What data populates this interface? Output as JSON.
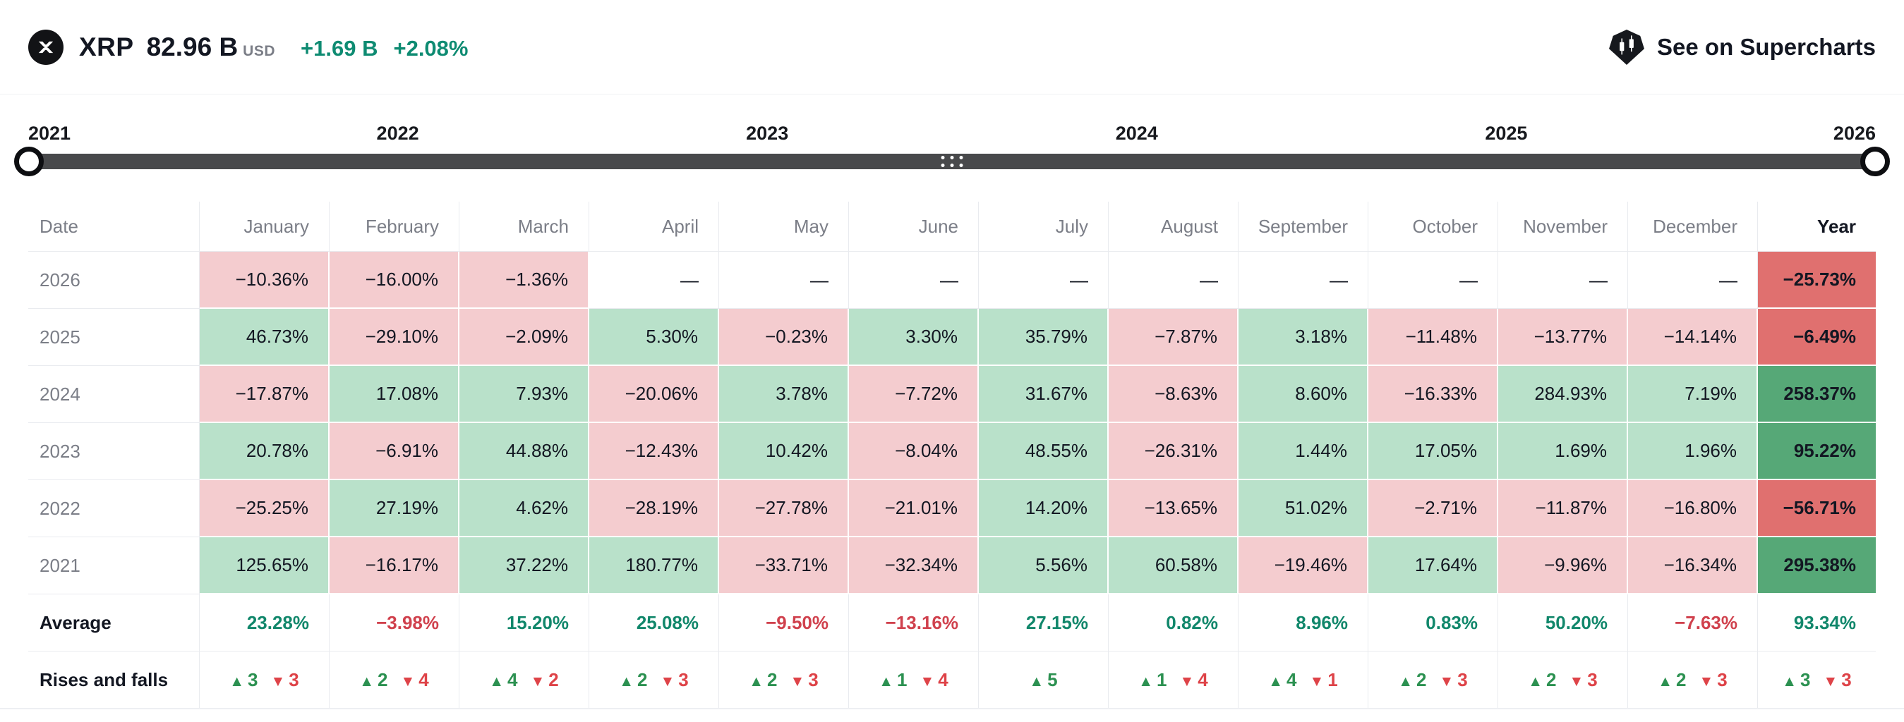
{
  "header": {
    "symbol": "XRP",
    "market_cap": "82.96 B",
    "currency": "USD",
    "change_abs": "+1.69 B",
    "change_pct": "+2.08%",
    "supercharts_label": "See on Supercharts"
  },
  "slider": {
    "years": [
      "2021",
      "2022",
      "2023",
      "2024",
      "2025",
      "2026"
    ]
  },
  "icons": {
    "up_triangle": "▲",
    "down_triangle": "▼"
  },
  "colors": {
    "positive_bg": "#b9e1ca",
    "negative_bg": "#f4cccf",
    "positive_year_bg": "#56a877",
    "negative_year_bg": "#e0706f",
    "green_text": "#11876b",
    "red_text": "#d0414d",
    "accent_green": "#0e8b72"
  },
  "table": {
    "columns": [
      "Date",
      "January",
      "February",
      "March",
      "April",
      "May",
      "June",
      "July",
      "August",
      "September",
      "October",
      "November",
      "December",
      "Year"
    ],
    "rows": [
      {
        "label": "2026",
        "cells": [
          {
            "v": "−10.36%",
            "t": "neg"
          },
          {
            "v": "−16.00%",
            "t": "neg"
          },
          {
            "v": "−1.36%",
            "t": "neg"
          },
          {
            "v": "—",
            "t": "flat"
          },
          {
            "v": "—",
            "t": "flat"
          },
          {
            "v": "—",
            "t": "flat"
          },
          {
            "v": "—",
            "t": "flat"
          },
          {
            "v": "—",
            "t": "flat"
          },
          {
            "v": "—",
            "t": "flat"
          },
          {
            "v": "—",
            "t": "flat"
          },
          {
            "v": "—",
            "t": "flat"
          },
          {
            "v": "—",
            "t": "flat"
          },
          {
            "v": "−25.73%",
            "t": "negY"
          }
        ]
      },
      {
        "label": "2025",
        "cells": [
          {
            "v": "46.73%",
            "t": "pos"
          },
          {
            "v": "−29.10%",
            "t": "neg"
          },
          {
            "v": "−2.09%",
            "t": "neg"
          },
          {
            "v": "5.30%",
            "t": "pos"
          },
          {
            "v": "−0.23%",
            "t": "neg"
          },
          {
            "v": "3.30%",
            "t": "pos"
          },
          {
            "v": "35.79%",
            "t": "pos"
          },
          {
            "v": "−7.87%",
            "t": "neg"
          },
          {
            "v": "3.18%",
            "t": "pos"
          },
          {
            "v": "−11.48%",
            "t": "neg"
          },
          {
            "v": "−13.77%",
            "t": "neg"
          },
          {
            "v": "−14.14%",
            "t": "neg"
          },
          {
            "v": "−6.49%",
            "t": "negY"
          }
        ]
      },
      {
        "label": "2024",
        "cells": [
          {
            "v": "−17.87%",
            "t": "neg"
          },
          {
            "v": "17.08%",
            "t": "pos"
          },
          {
            "v": "7.93%",
            "t": "pos"
          },
          {
            "v": "−20.06%",
            "t": "neg"
          },
          {
            "v": "3.78%",
            "t": "pos"
          },
          {
            "v": "−7.72%",
            "t": "neg"
          },
          {
            "v": "31.67%",
            "t": "pos"
          },
          {
            "v": "−8.63%",
            "t": "neg"
          },
          {
            "v": "8.60%",
            "t": "pos"
          },
          {
            "v": "−16.33%",
            "t": "neg"
          },
          {
            "v": "284.93%",
            "t": "pos"
          },
          {
            "v": "7.19%",
            "t": "pos"
          },
          {
            "v": "258.37%",
            "t": "posY"
          }
        ]
      },
      {
        "label": "2023",
        "cells": [
          {
            "v": "20.78%",
            "t": "pos"
          },
          {
            "v": "−6.91%",
            "t": "neg"
          },
          {
            "v": "44.88%",
            "t": "pos"
          },
          {
            "v": "−12.43%",
            "t": "neg"
          },
          {
            "v": "10.42%",
            "t": "pos"
          },
          {
            "v": "−8.04%",
            "t": "neg"
          },
          {
            "v": "48.55%",
            "t": "pos"
          },
          {
            "v": "−26.31%",
            "t": "neg"
          },
          {
            "v": "1.44%",
            "t": "pos"
          },
          {
            "v": "17.05%",
            "t": "pos"
          },
          {
            "v": "1.69%",
            "t": "pos"
          },
          {
            "v": "1.96%",
            "t": "pos"
          },
          {
            "v": "95.22%",
            "t": "posY"
          }
        ]
      },
      {
        "label": "2022",
        "cells": [
          {
            "v": "−25.25%",
            "t": "neg"
          },
          {
            "v": "27.19%",
            "t": "pos"
          },
          {
            "v": "4.62%",
            "t": "pos"
          },
          {
            "v": "−28.19%",
            "t": "neg"
          },
          {
            "v": "−27.78%",
            "t": "neg"
          },
          {
            "v": "−21.01%",
            "t": "neg"
          },
          {
            "v": "14.20%",
            "t": "pos"
          },
          {
            "v": "−13.65%",
            "t": "neg"
          },
          {
            "v": "51.02%",
            "t": "pos"
          },
          {
            "v": "−2.71%",
            "t": "neg"
          },
          {
            "v": "−11.87%",
            "t": "neg"
          },
          {
            "v": "−16.80%",
            "t": "neg"
          },
          {
            "v": "−56.71%",
            "t": "negY"
          }
        ]
      },
      {
        "label": "2021",
        "cells": [
          {
            "v": "125.65%",
            "t": "pos"
          },
          {
            "v": "−16.17%",
            "t": "neg"
          },
          {
            "v": "37.22%",
            "t": "pos"
          },
          {
            "v": "180.77%",
            "t": "pos"
          },
          {
            "v": "−33.71%",
            "t": "neg"
          },
          {
            "v": "−32.34%",
            "t": "neg"
          },
          {
            "v": "5.56%",
            "t": "pos"
          },
          {
            "v": "60.58%",
            "t": "pos"
          },
          {
            "v": "−19.46%",
            "t": "neg"
          },
          {
            "v": "17.64%",
            "t": "pos"
          },
          {
            "v": "−9.96%",
            "t": "neg"
          },
          {
            "v": "−16.34%",
            "t": "neg"
          },
          {
            "v": "295.38%",
            "t": "posY"
          }
        ]
      }
    ],
    "average": {
      "label": "Average",
      "cells": [
        {
          "v": "23.28%",
          "t": "up"
        },
        {
          "v": "−3.98%",
          "t": "down"
        },
        {
          "v": "15.20%",
          "t": "up"
        },
        {
          "v": "25.08%",
          "t": "up"
        },
        {
          "v": "−9.50%",
          "t": "down"
        },
        {
          "v": "−13.16%",
          "t": "down"
        },
        {
          "v": "27.15%",
          "t": "up"
        },
        {
          "v": "0.82%",
          "t": "up"
        },
        {
          "v": "8.96%",
          "t": "up"
        },
        {
          "v": "0.83%",
          "t": "up"
        },
        {
          "v": "50.20%",
          "t": "up"
        },
        {
          "v": "−7.63%",
          "t": "down"
        },
        {
          "v": "93.34%",
          "t": "up"
        }
      ]
    },
    "rises": {
      "label": "Rises and falls",
      "cells": [
        {
          "up": "3",
          "down": "3"
        },
        {
          "up": "2",
          "down": "4"
        },
        {
          "up": "4",
          "down": "2"
        },
        {
          "up": "2",
          "down": "3"
        },
        {
          "up": "2",
          "down": "3"
        },
        {
          "up": "1",
          "down": "4"
        },
        {
          "up": "5",
          "down": null
        },
        {
          "up": "1",
          "down": "4"
        },
        {
          "up": "4",
          "down": "1"
        },
        {
          "up": "2",
          "down": "3"
        },
        {
          "up": "2",
          "down": "3"
        },
        {
          "up": "2",
          "down": "3"
        },
        {
          "up": "3",
          "down": "3"
        }
      ]
    }
  }
}
